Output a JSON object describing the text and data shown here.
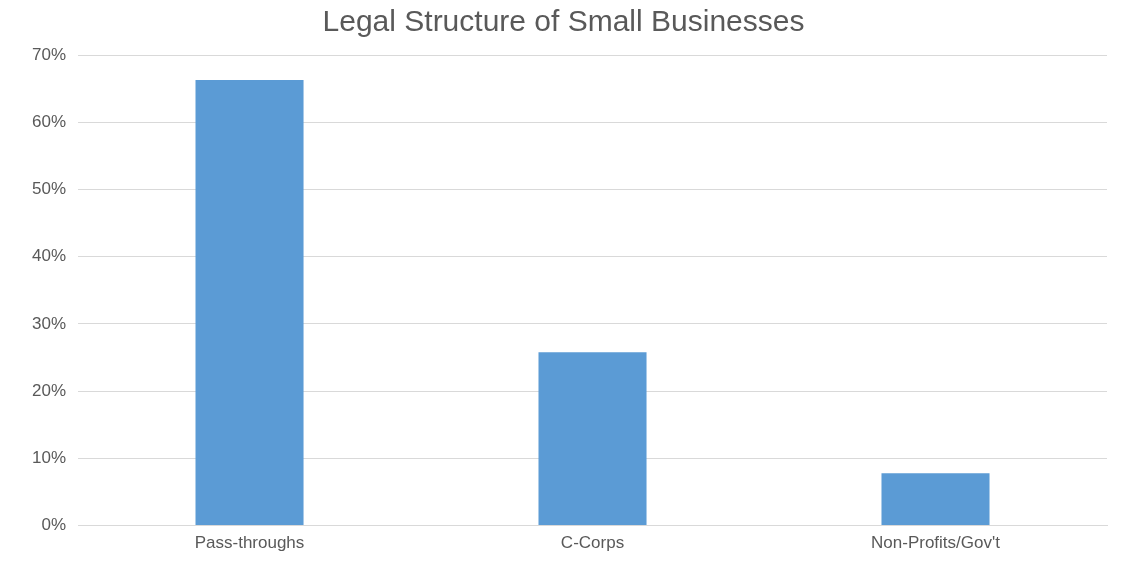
{
  "chart_data": {
    "type": "bar",
    "title": "Legal Structure of Small Businesses",
    "categories": [
      "Pass-throughs",
      "C-Corps",
      "Non-Profits/Gov't"
    ],
    "values": [
      66.3,
      25.8,
      7.8
    ],
    "color": "#5b9bd5",
    "ylim": [
      0,
      70
    ],
    "yticks": [
      {
        "value": 0,
        "label": "0%"
      },
      {
        "value": 10,
        "label": "10%"
      },
      {
        "value": 20,
        "label": "20%"
      },
      {
        "value": 30,
        "label": "30%"
      },
      {
        "value": 40,
        "label": "40%"
      },
      {
        "value": 50,
        "label": "50%"
      },
      {
        "value": 60,
        "label": "60%"
      },
      {
        "value": 70,
        "label": "70%"
      }
    ],
    "grid": "y"
  }
}
